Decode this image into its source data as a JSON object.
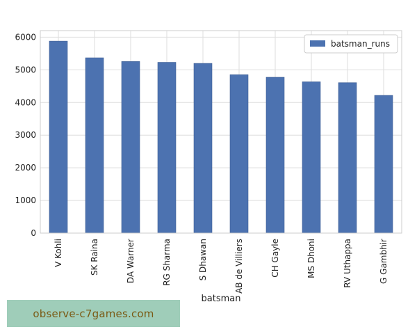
{
  "chart_data": {
    "type": "bar",
    "categories": [
      "V Kohli",
      "SK Raina",
      "DA Warner",
      "RG Sharma",
      "S Dhawan",
      "AB de Villiers",
      "CH Gayle",
      "MS Dhoni",
      "RV Uthappa",
      "G Gambhir"
    ],
    "series": [
      {
        "name": "batsman_runs",
        "values": [
          5878,
          5368,
          5254,
          5230,
          5197,
          4849,
          4772,
          4632,
          4607,
          4217
        ]
      }
    ],
    "title": "",
    "xlabel": "batsman",
    "ylabel": "",
    "ylim": [
      0,
      6200
    ],
    "yticks": [
      0,
      1000,
      2000,
      3000,
      4000,
      5000,
      6000
    ],
    "grid": true,
    "legend_position": "top-right",
    "colors": {
      "bar": "#4c72b0",
      "bar_edge": "#3f5f94",
      "grid": "#dddddd",
      "frame": "#cccccc"
    }
  },
  "watermark": {
    "text": "observe-c7games.com",
    "background": "#9fcdb9",
    "color": "#7a5a14"
  }
}
